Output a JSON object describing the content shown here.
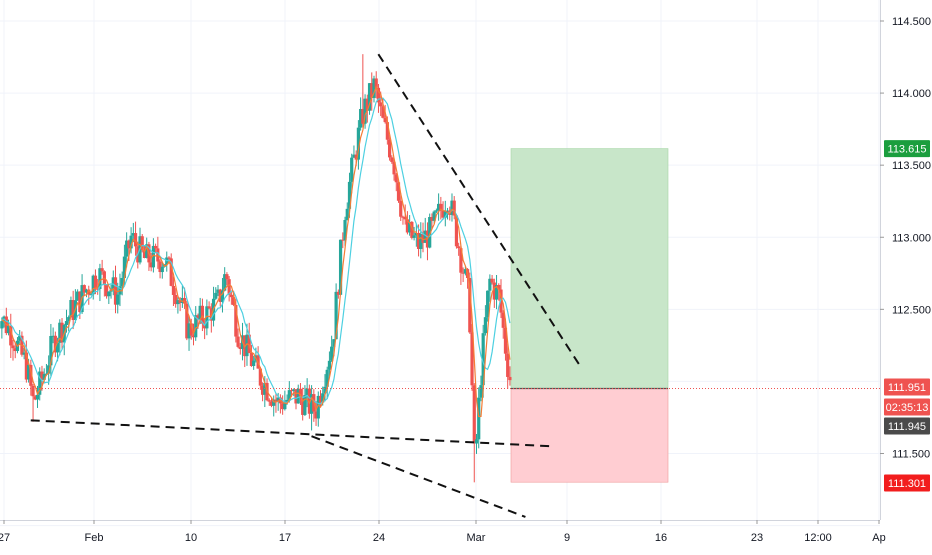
{
  "chart_data": {
    "type": "candlestick",
    "price_axis": {
      "ticks": [
        "114.500",
        "114.000",
        "113.500",
        "113.000",
        "112.500",
        "111.500"
      ],
      "tick_values": [
        114.5,
        114.0,
        113.5,
        113.0,
        112.5,
        111.5
      ],
      "range": [
        110.93,
        114.62
      ]
    },
    "time_axis": {
      "ticks": [
        "27",
        "Feb",
        "10",
        "17",
        "24",
        "Mar",
        "9",
        "16",
        "23",
        "12:00",
        "Ap"
      ]
    },
    "price_badges": {
      "take_profit": "113.615",
      "last_price": "111.951",
      "countdown": "02:35:13",
      "bid": "111.945",
      "stop_loss": "111.301"
    },
    "levels": {
      "take_profit": 113.615,
      "entry": 111.951,
      "stop_loss": 111.301
    },
    "trend_lines": [
      {
        "name": "descending-resistance",
        "from": {
          "date": "Feb 24",
          "price": 114.27
        },
        "to": {
          "date": "Mar 11",
          "price": 112.12
        }
      },
      {
        "name": "lower-support",
        "from": {
          "date": "Jan 29",
          "price": 111.73
        },
        "to": {
          "date": "Mar 9",
          "price": 111.55
        }
      },
      {
        "name": "falling-support",
        "from": {
          "date": "Feb 19",
          "price": 111.62
        },
        "to": {
          "date": "Mar 7",
          "price": 111.06
        }
      }
    ],
    "colors": {
      "up_candle": "#26a69a",
      "down_candle": "#ef5350",
      "fast_ma": "#f57c35",
      "slow_ma": "#4dd0e1",
      "take_profit_zone": "#c8e6c9",
      "stop_loss_zone": "#ffcdd2",
      "take_profit_badge": "#1b9e3e",
      "stop_loss_badge": "#f21d1d",
      "last_price_badge": "#ef5350",
      "bid_badge": "#4a4a4a"
    }
  }
}
